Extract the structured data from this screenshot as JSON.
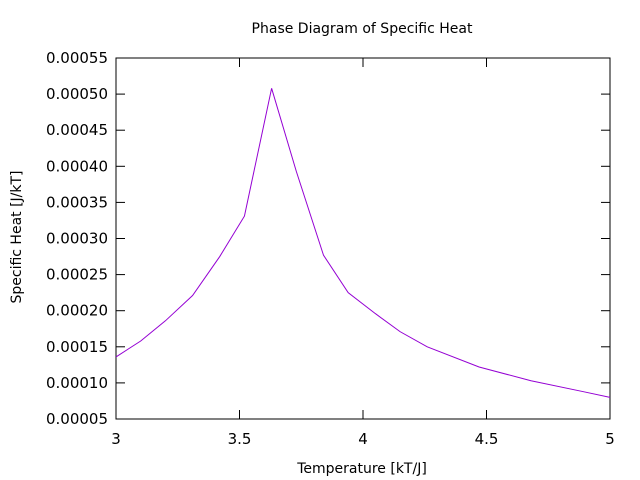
{
  "chart_data": {
    "type": "line",
    "title": "Phase Diagram of Specific Heat",
    "xlabel": "Temperature [kT/J]",
    "ylabel": "Specific Heat [J/kT]",
    "xlim": [
      3,
      5
    ],
    "ylim": [
      5e-05,
      0.00055
    ],
    "x_ticks": [
      3,
      3.5,
      4,
      4.5,
      5
    ],
    "x_tick_labels": [
      "3",
      "3.5",
      "4",
      "4.5",
      "5"
    ],
    "y_ticks": [
      5e-05,
      0.0001,
      0.00015,
      0.0002,
      0.00025,
      0.0003,
      0.00035,
      0.0004,
      0.00045,
      0.0005,
      0.00055
    ],
    "y_tick_labels": [
      "0.00005",
      "0.00010",
      "0.00015",
      "0.00020",
      "0.00025",
      "0.00030",
      "0.00035",
      "0.00040",
      "0.00045",
      "0.00050",
      "0.00055"
    ],
    "grid": false,
    "series": [
      {
        "color": "#9400d3",
        "x": [
          3.0,
          3.1,
          3.2,
          3.31,
          3.42,
          3.52,
          3.63,
          3.73,
          3.84,
          3.94,
          4.05,
          4.15,
          4.26,
          4.47,
          4.68,
          4.89,
          5.0
        ],
        "y": [
          0.000136,
          0.000158,
          0.000186,
          0.000221,
          0.000275,
          0.000331,
          0.000508,
          0.000393,
          0.000277,
          0.000225,
          0.000196,
          0.000171,
          0.00015,
          0.000122,
          0.000103,
          8.8e-05,
          8e-05
        ]
      }
    ]
  }
}
